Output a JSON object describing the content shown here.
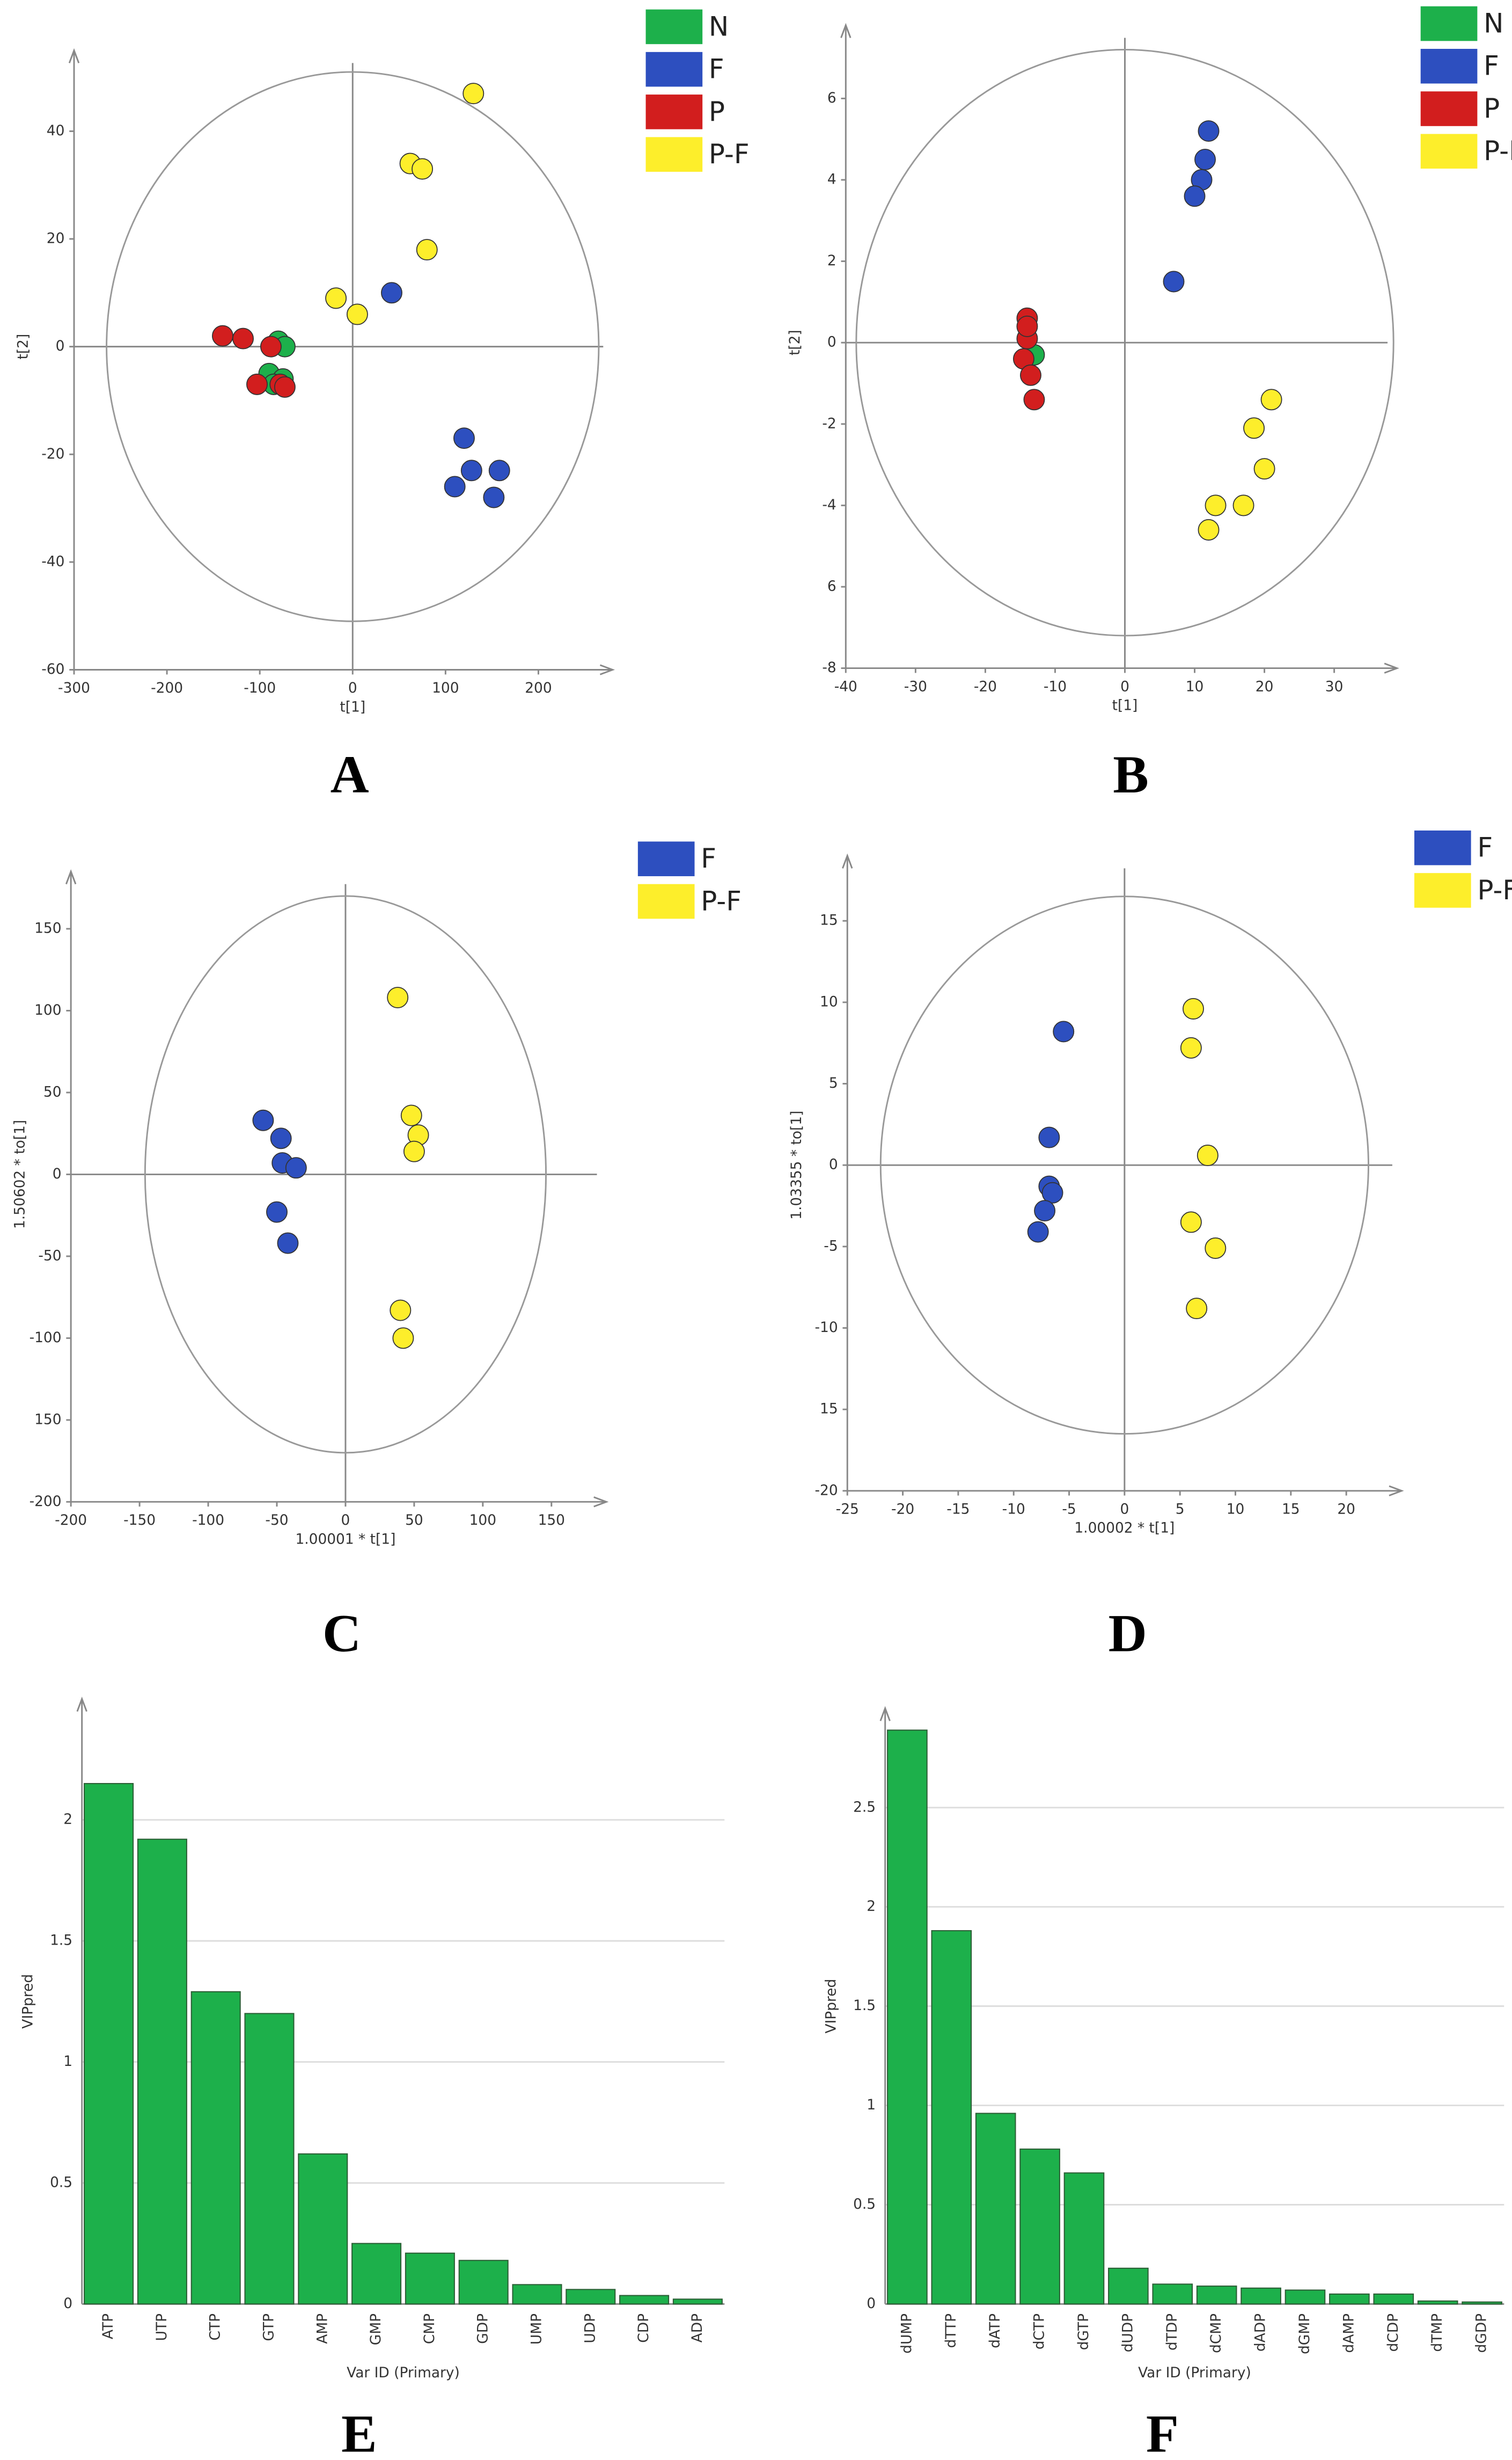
{
  "chart_data": [
    {
      "type": "scatter",
      "label": "A",
      "xlabel": "t[1]",
      "ylabel": "t[2]",
      "xlim": [
        -300,
        280
      ],
      "ylim": [
        -60,
        55
      ],
      "xticks": [
        -300,
        -200,
        -100,
        0,
        100,
        200
      ],
      "yticks": [
        -60,
        -40,
        -20,
        0,
        20,
        40
      ],
      "ellipse_radii": [
        265,
        51
      ],
      "series": [
        {
          "name": "N",
          "color": "#1db04b",
          "x": [
            -80,
            -73,
            -90,
            -75,
            -85
          ],
          "values": [
            1,
            0,
            -5,
            -6,
            -7
          ]
        },
        {
          "name": "F",
          "color": "#2d4fbf",
          "x": [
            42,
            120,
            128,
            158,
            110,
            152
          ],
          "values": [
            10,
            -17,
            -23,
            -23,
            -26,
            -28
          ]
        },
        {
          "name": "P",
          "color": "#d21e1e",
          "x": [
            -140,
            -118,
            -88,
            -103,
            -78,
            -73
          ],
          "values": [
            2,
            1.5,
            0,
            -7,
            -7,
            -7.5
          ]
        },
        {
          "name": "P-F",
          "color": "#fdee2b",
          "x": [
            130,
            62,
            75,
            80,
            -18,
            5
          ],
          "values": [
            47,
            34,
            33,
            18,
            9,
            6
          ]
        }
      ]
    },
    {
      "type": "scatter",
      "label": "B",
      "xlabel": "t[1]",
      "ylabel": "t[2]",
      "xlim": [
        -40,
        39
      ],
      "ylim": [
        -8,
        7.8
      ],
      "xticks": [
        -40,
        -30,
        -20,
        -10,
        0,
        10,
        20,
        30
      ],
      "yticks": [
        -8,
        {
          "value": -6,
          "label": "6"
        },
        -4,
        -2,
        0,
        2,
        4,
        6
      ],
      "ellipse_radii": [
        38.5,
        7.2
      ],
      "series": [
        {
          "name": "N",
          "color": "#1db04b",
          "x": [
            -13
          ],
          "values": [
            -0.3
          ]
        },
        {
          "name": "F",
          "color": "#2d4fbf",
          "x": [
            12,
            11.5,
            11,
            10,
            7
          ],
          "values": [
            5.2,
            4.5,
            4,
            3.6,
            1.5
          ]
        },
        {
          "name": "P",
          "color": "#d21e1e",
          "x": [
            -14,
            -14,
            -14.5,
            -13.5,
            -13,
            -14
          ],
          "values": [
            0.6,
            0.1,
            -0.4,
            -0.8,
            -1.4,
            0.4
          ]
        },
        {
          "name": "P-F",
          "color": "#fdee2b",
          "x": [
            21,
            18.5,
            20,
            13,
            17,
            12
          ],
          "values": [
            -1.4,
            -2.1,
            -3.1,
            -4,
            -4,
            -4.6
          ]
        }
      ]
    },
    {
      "type": "scatter",
      "label": "C",
      "xlabel": "1.00001 * t[1]",
      "ylabel": "1.50602 * to[1]",
      "xlim": [
        -200,
        190
      ],
      "ylim": [
        -200,
        185
      ],
      "xticks": [
        -200,
        -150,
        -100,
        -50,
        0,
        50,
        100,
        150
      ],
      "yticks": [
        -200,
        {
          "value": -150,
          "label": "150"
        },
        -100,
        -50,
        0,
        50,
        100,
        150
      ],
      "ellipse_radii": [
        146,
        170
      ],
      "series": [
        {
          "name": "F",
          "color": "#2d4fbf",
          "x": [
            -60,
            -47,
            -46,
            -36,
            -50,
            -42
          ],
          "values": [
            33,
            22,
            7,
            4,
            -23,
            -42
          ]
        },
        {
          "name": "P-F",
          "color": "#fdee2b",
          "x": [
            38,
            48,
            53,
            50,
            40,
            42
          ],
          "values": [
            108,
            36,
            24,
            14,
            -83,
            -100
          ]
        }
      ]
    },
    {
      "type": "scatter",
      "label": "D",
      "xlabel": "1.00002 * t[1]",
      "ylabel": "1.03355 * to[1]",
      "xlim": [
        -25,
        25
      ],
      "ylim": [
        -20,
        19
      ],
      "xticks": [
        -25,
        -20,
        -15,
        -10,
        -5,
        0,
        5,
        10,
        15,
        20
      ],
      "yticks": [
        -20,
        {
          "value": -15,
          "label": "15"
        },
        -10,
        -5,
        0,
        5,
        10,
        15
      ],
      "ellipse_radii": [
        22,
        16.5
      ],
      "series": [
        {
          "name": "F",
          "color": "#2d4fbf",
          "x": [
            -5.5,
            -6.8,
            -6.8,
            -6.5,
            -7.2,
            -7.8
          ],
          "values": [
            8.2,
            1.7,
            -1.3,
            -1.7,
            -2.8,
            -4.1
          ]
        },
        {
          "name": "P-F",
          "color": "#fdee2b",
          "x": [
            6.2,
            6,
            7.5,
            6,
            8.2,
            6.5
          ],
          "values": [
            9.6,
            7.2,
            0.6,
            -3.5,
            -5.1,
            -8.8
          ]
        }
      ]
    },
    {
      "type": "bar",
      "label": "E",
      "xlabel": "Var ID (Primary)",
      "ylabel": "VIPpred",
      "color": "#1db04b",
      "categories": [
        "ATP",
        "UTP",
        "CTP",
        "GTP",
        "AMP",
        "GMP",
        "CMP",
        "GDP",
        "UMP",
        "UDP",
        "CDP",
        "ADP"
      ],
      "values": [
        2.15,
        1.92,
        1.29,
        1.2,
        0.62,
        0.25,
        0.21,
        0.18,
        0.08,
        0.06,
        0.035,
        0.02
      ],
      "ylim": [
        0,
        2.5
      ],
      "yticks": [
        0,
        0.5,
        1,
        1.5,
        2
      ],
      "grid": true
    },
    {
      "type": "bar",
      "label": "F",
      "xlabel": "Var ID (Primary)",
      "ylabel": "VIPpred",
      "color": "#1db04b",
      "categories": [
        "dUMP",
        "dTTP",
        "dATP",
        "dCTP",
        "dGTP",
        "dUDP",
        "dTDP",
        "dCMP",
        "dADP",
        "dGMP",
        "dAMP",
        "dCDP",
        "dTMP",
        "dGDP"
      ],
      "values": [
        2.89,
        1.88,
        0.96,
        0.78,
        0.66,
        0.18,
        0.1,
        0.09,
        0.08,
        0.07,
        0.05,
        0.05,
        0.015,
        0.01
      ],
      "ylim": [
        0,
        3
      ],
      "yticks": [
        0,
        0.5,
        1,
        1.5,
        2,
        2.5
      ],
      "grid": true
    }
  ]
}
